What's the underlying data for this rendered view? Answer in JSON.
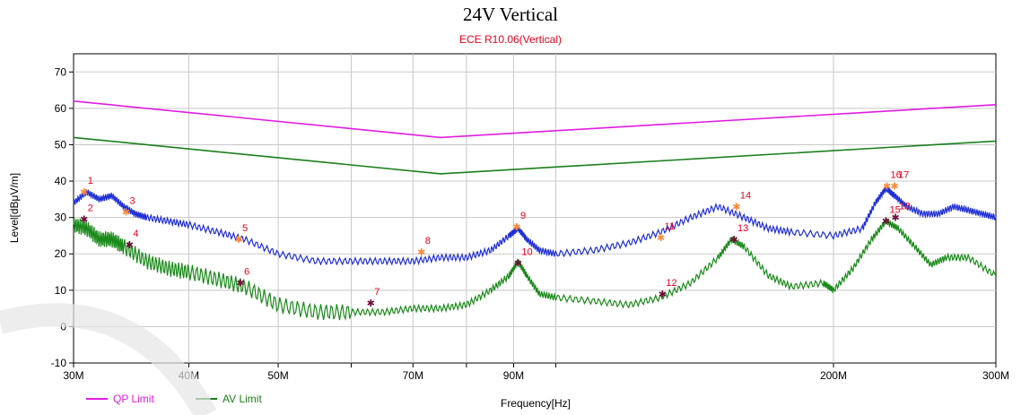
{
  "chart_data": {
    "type": "line",
    "title": "24V Vertical",
    "subtitle": "ECE R10.06(Vertical)",
    "xlabel": "Frequency[Hz]",
    "ylabel": "Level[dBμV/m]",
    "x_scale": "log",
    "xlim": [
      30000000,
      300000000
    ],
    "ylim": [
      -10,
      75
    ],
    "y_ticks": [
      -10,
      0,
      10,
      20,
      30,
      40,
      50,
      60,
      70
    ],
    "x_ticks": [
      {
        "value": 30000000,
        "label": "30M"
      },
      {
        "value": 40000000,
        "label": "40M"
      },
      {
        "value": 50000000,
        "label": "50M"
      },
      {
        "value": 60000000,
        "label": ""
      },
      {
        "value": 70000000,
        "label": "70M"
      },
      {
        "value": 80000000,
        "label": ""
      },
      {
        "value": 90000000,
        "label": "90M"
      },
      {
        "value": 100000000,
        "label": ""
      },
      {
        "value": 200000000,
        "label": "200M"
      },
      {
        "value": 300000000,
        "label": "300M"
      }
    ],
    "grid": true,
    "legend_position": "bottom-left",
    "series": [
      {
        "name": "QP Limit",
        "color": "#e21ce2",
        "x": [
          30000000,
          75000000,
          300000000
        ],
        "y": [
          62,
          52,
          61
        ]
      },
      {
        "name": "AV Limit",
        "color": "#1a7f1a",
        "x": [
          30000000,
          75000000,
          300000000
        ],
        "y": [
          52,
          42,
          51
        ]
      },
      {
        "name": "",
        "color": "#1f2fd6",
        "x": [
          30000000,
          31000000,
          32000000,
          33000000,
          34000000,
          35000000,
          36000000,
          38000000,
          40000000,
          43000000,
          46000000,
          50000000,
          55000000,
          60000000,
          65000000,
          70000000,
          75000000,
          80000000,
          85000000,
          89000000,
          91000000,
          93000000,
          96000000,
          100000000,
          110000000,
          120000000,
          130000000,
          140000000,
          150000000,
          160000000,
          170000000,
          180000000,
          200000000,
          215000000,
          222000000,
          228000000,
          233000000,
          240000000,
          250000000,
          260000000,
          270000000,
          280000000,
          290000000,
          300000000
        ],
        "y": [
          34,
          37,
          35,
          36,
          33,
          31,
          30,
          29,
          28,
          26,
          24,
          20,
          18,
          18,
          18,
          18,
          19,
          19,
          21,
          25,
          27,
          24,
          21,
          20,
          21,
          23,
          26,
          30,
          33,
          30,
          27,
          26,
          25,
          27,
          34,
          38,
          36,
          33,
          31,
          31,
          33,
          32,
          31,
          30
        ]
      },
      {
        "name": "",
        "color": "#1a8a1a",
        "x": [
          30000000,
          31000000,
          32000000,
          33000000,
          34000000,
          36000000,
          38000000,
          40000000,
          43000000,
          46000000,
          50000000,
          55000000,
          60000000,
          65000000,
          70000000,
          75000000,
          80000000,
          85000000,
          89000000,
          91000000,
          93000000,
          96000000,
          100000000,
          110000000,
          120000000,
          130000000,
          140000000,
          150000000,
          155000000,
          160000000,
          170000000,
          180000000,
          195000000,
          200000000,
          210000000,
          220000000,
          228000000,
          235000000,
          245000000,
          255000000,
          265000000,
          280000000,
          300000000
        ],
        "y": [
          28,
          27,
          24,
          24,
          22,
          18,
          16,
          15,
          13,
          11,
          6,
          4,
          4,
          4,
          5,
          5,
          6,
          10,
          14,
          18,
          14,
          9,
          8,
          7,
          6,
          8,
          12,
          19,
          24,
          22,
          14,
          11,
          12,
          10,
          16,
          24,
          29,
          27,
          22,
          17,
          19,
          19,
          14
        ]
      }
    ],
    "markers": [
      {
        "label": "1",
        "x": 30800000,
        "y": 37,
        "kind": "peak"
      },
      {
        "label": "2",
        "x": 30800000,
        "y": 29.5,
        "kind": "avg"
      },
      {
        "label": "3",
        "x": 34200000,
        "y": 31.5,
        "kind": "peak"
      },
      {
        "label": "4",
        "x": 34500000,
        "y": 22.5,
        "kind": "avg"
      },
      {
        "label": "5",
        "x": 45300000,
        "y": 24,
        "kind": "peak"
      },
      {
        "label": "6",
        "x": 45500000,
        "y": 12,
        "kind": "avg"
      },
      {
        "label": "7",
        "x": 63000000,
        "y": 6.5,
        "kind": "avg"
      },
      {
        "label": "8",
        "x": 71500000,
        "y": 20.5,
        "kind": "peak"
      },
      {
        "label": "9",
        "x": 90700000,
        "y": 27.5,
        "kind": "peak"
      },
      {
        "label": "10",
        "x": 91000000,
        "y": 17.5,
        "kind": "avg"
      },
      {
        "label": "11",
        "x": 130000000,
        "y": 24.5,
        "kind": "peak"
      },
      {
        "label": "12",
        "x": 130500000,
        "y": 9,
        "kind": "avg"
      },
      {
        "label": "13",
        "x": 156000000,
        "y": 24,
        "kind": "avg"
      },
      {
        "label": "14",
        "x": 157000000,
        "y": 33,
        "kind": "peak"
      },
      {
        "label": "15",
        "x": 228000000,
        "y": 29,
        "kind": "avg"
      },
      {
        "label": "16",
        "x": 228500000,
        "y": 38.7,
        "kind": "peak"
      },
      {
        "label": "17",
        "x": 233000000,
        "y": 38.7,
        "kind": "peak"
      },
      {
        "label": "18",
        "x": 233500000,
        "y": 30,
        "kind": "avg"
      }
    ]
  },
  "legend": {
    "qp": {
      "label": "QP Limit",
      "color": "#e21ce2"
    },
    "av": {
      "label": "AV Limit",
      "color": "#1a7f1a"
    }
  }
}
